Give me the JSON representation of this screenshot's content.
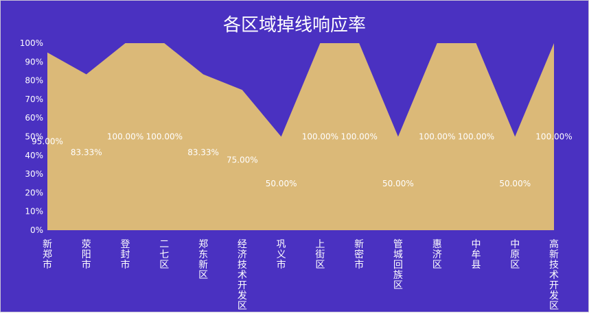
{
  "chart_data": {
    "type": "area",
    "title": "各区域掉线响应率",
    "categories": [
      "新郑市",
      "荥阳市",
      "登封市",
      "二七区",
      "郑东新区",
      "经济技术开发区",
      "巩义市",
      "上街区",
      "新密市",
      "管城回族区",
      "惠济区",
      "中牟县",
      "中原区",
      "高新技术开发区"
    ],
    "values": [
      95,
      83.33,
      100,
      100,
      83.33,
      75,
      50,
      100,
      100,
      50,
      100,
      100,
      50,
      100
    ],
    "data_labels": [
      "95.00%",
      "83.33%",
      "100.00%",
      "100.00%",
      "83.33%",
      "75.00%",
      "50.00%",
      "100.00%",
      "100.00%",
      "50.00%",
      "100.00%",
      "100.00%",
      "50.00%",
      "100.00%"
    ],
    "y_ticks": [
      "0%",
      "10%",
      "20%",
      "30%",
      "40%",
      "50%",
      "60%",
      "70%",
      "80%",
      "90%",
      "100%"
    ],
    "ylim": [
      0,
      100
    ],
    "grid": false,
    "legend": "none",
    "colors": {
      "background": "#4a31c1",
      "area_fill": "#dbb978",
      "text": "#ffffff"
    }
  }
}
